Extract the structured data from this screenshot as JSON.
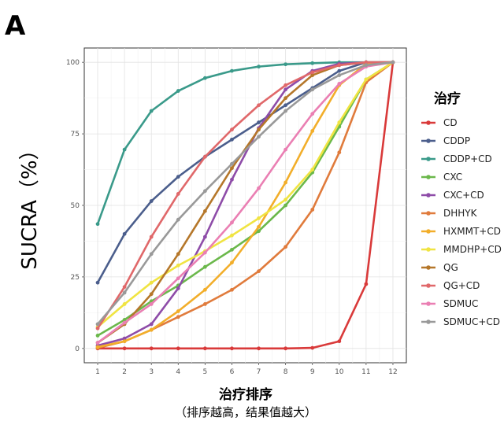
{
  "panel_label": "A",
  "chart_data": {
    "type": "line",
    "title": "",
    "xlabel": "治疗排序",
    "xlabel_sub": "（排序越高，结果值越大）",
    "ylabel": "SUCRA（%）",
    "x": [
      1,
      2,
      3,
      4,
      5,
      6,
      7,
      8,
      9,
      10,
      11,
      12
    ],
    "xlim": [
      0.5,
      12.5
    ],
    "ylim": [
      -5,
      105
    ],
    "yticks": [
      0,
      25,
      50,
      75,
      100
    ],
    "grid": true,
    "legend_title": "治疗",
    "legend_position": "right",
    "series": [
      {
        "name": "CD",
        "color": "#D93A3A",
        "values": [
          0,
          0,
          0,
          0,
          0,
          0,
          0,
          0,
          0.2,
          2.5,
          22.5,
          100
        ]
      },
      {
        "name": "CDDP",
        "color": "#4B5E8C",
        "values": [
          23,
          40,
          51.5,
          60,
          67,
          73,
          79,
          85,
          91,
          97,
          100,
          100
        ]
      },
      {
        "name": "CDDP+CD",
        "color": "#3A9A8A",
        "values": [
          43.5,
          69.5,
          83,
          90,
          94.5,
          97,
          98.5,
          99.3,
          99.7,
          100,
          100,
          100
        ]
      },
      {
        "name": "CXC",
        "color": "#6BB84B",
        "values": [
          4.5,
          10,
          16.5,
          22,
          28.5,
          34.5,
          41,
          50,
          61.5,
          77.5,
          94,
          100
        ]
      },
      {
        "name": "CXC+CD",
        "color": "#8E4CA8",
        "values": [
          1,
          3.5,
          8.5,
          21,
          39,
          59,
          77,
          90.5,
          97,
          99.5,
          100,
          100
        ]
      },
      {
        "name": "DHHYK",
        "color": "#E07B3C",
        "values": [
          0.2,
          2.5,
          6.5,
          11,
          15.5,
          20.5,
          27,
          35.5,
          48.5,
          68.5,
          93,
          100
        ]
      },
      {
        "name": "HXMMT+CD",
        "color": "#F2AE2A",
        "values": [
          0.5,
          2.5,
          6.5,
          13,
          20.5,
          30,
          42.5,
          58,
          76,
          92,
          99.5,
          100
        ]
      },
      {
        "name": "MMDHP+CD",
        "color": "#F0E442",
        "values": [
          7.5,
          15.5,
          23,
          29,
          34,
          39.5,
          45.5,
          52,
          62.5,
          79,
          94,
          100
        ]
      },
      {
        "name": "QG",
        "color": "#B5772A",
        "values": [
          2,
          8.5,
          19,
          33,
          48,
          63,
          76.5,
          87.5,
          95.5,
          99,
          100,
          100
        ]
      },
      {
        "name": "QG+CD",
        "color": "#E0686A",
        "values": [
          7,
          21.5,
          39,
          54,
          67,
          76.5,
          85,
          92,
          96.5,
          99,
          100,
          100
        ]
      },
      {
        "name": "SDMUC",
        "color": "#EA7FB3",
        "values": [
          2,
          9,
          15.5,
          24.5,
          33.5,
          44,
          56,
          69.5,
          82,
          92.5,
          98.5,
          100
        ]
      },
      {
        "name": "SDMUC+CD",
        "color": "#999999",
        "values": [
          8.5,
          19.5,
          33,
          45,
          55,
          64.5,
          74,
          83,
          90.5,
          95.5,
          99,
          100
        ]
      }
    ]
  }
}
